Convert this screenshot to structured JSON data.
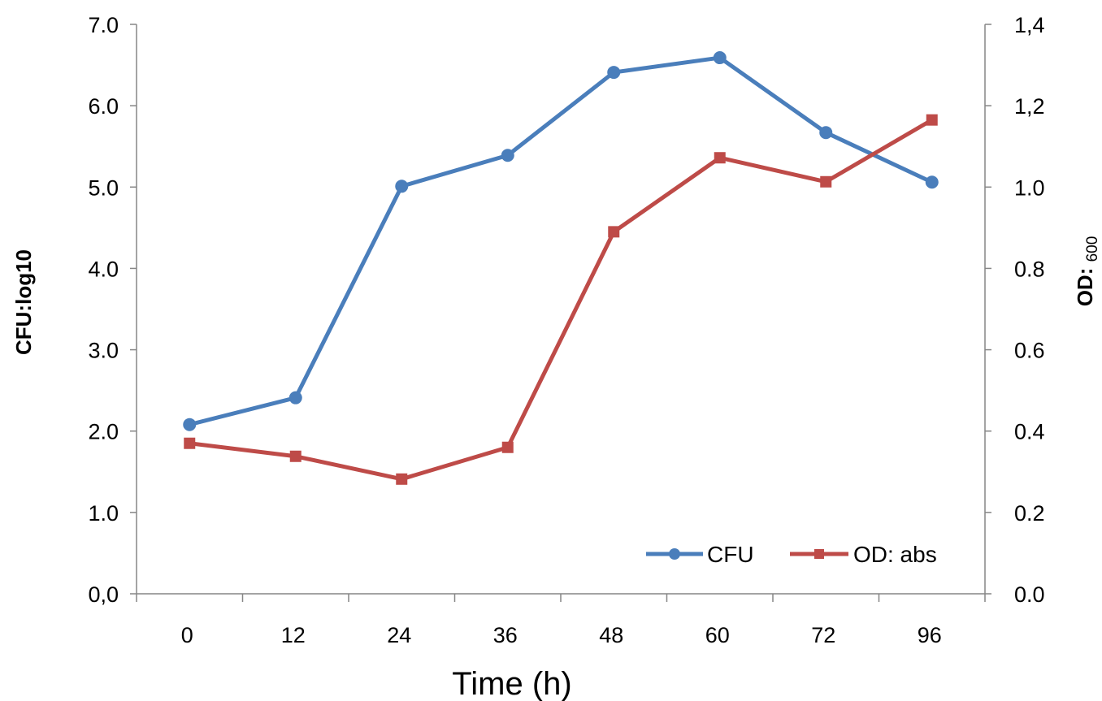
{
  "chart_data": {
    "type": "line",
    "categories": [
      "0",
      "12",
      "24",
      "36",
      "48",
      "60",
      "72",
      "96"
    ],
    "xlabel": "Time (h)",
    "ylabel_left": "CFU:log10",
    "ylabel_right": "OD: ",
    "ylabel_right_subscript": "600",
    "ylim_left": [
      0,
      7
    ],
    "ylim_right": [
      0,
      1.4
    ],
    "yticks_left": [
      "0,0",
      "1.0",
      "2.0",
      "3.0",
      "4.0",
      "5.0",
      "6.0",
      "7.0"
    ],
    "yticks_right": [
      "0.0",
      "0.2",
      "0.4",
      "0.6",
      "0.8",
      "1.0",
      "1,2",
      "1,4"
    ],
    "legend_position": "bottom-right",
    "grid": false,
    "series": [
      {
        "name": "CFU",
        "axis": "left",
        "color": "#4A7EBB",
        "marker": "circle",
        "values": [
          2.08,
          2.41,
          5.01,
          5.39,
          6.41,
          6.59,
          5.67,
          5.06
        ]
      },
      {
        "name": "OD: abs",
        "axis": "right",
        "color": "#BE4B48",
        "marker": "square",
        "values": [
          0.37,
          0.338,
          0.282,
          0.36,
          0.89,
          1.072,
          1.013,
          1.165
        ]
      }
    ]
  }
}
